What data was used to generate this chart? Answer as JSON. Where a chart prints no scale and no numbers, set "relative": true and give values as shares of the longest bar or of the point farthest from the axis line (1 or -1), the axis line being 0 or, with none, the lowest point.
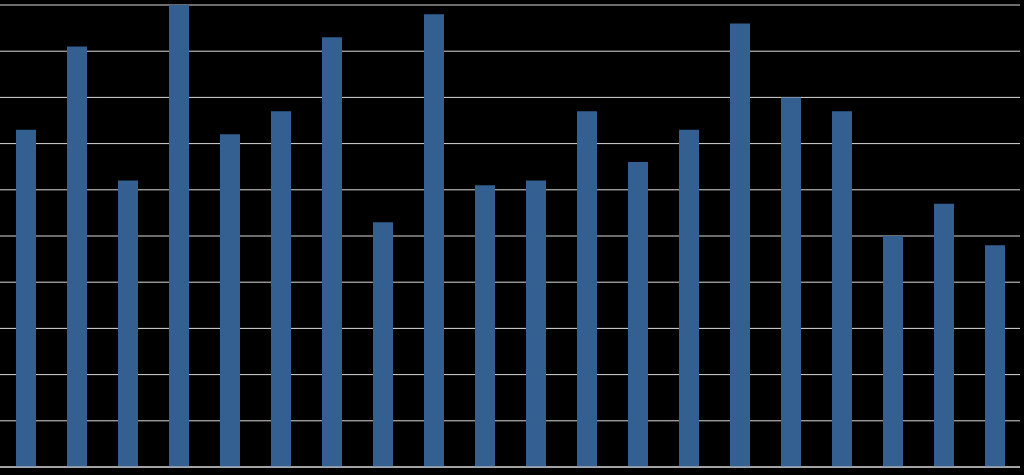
{
  "chart_data": {
    "type": "bar",
    "relative": true,
    "grid": "y",
    "color": "#335f91",
    "categories": [
      null,
      null,
      null,
      null,
      null,
      null,
      null,
      null,
      null,
      null,
      null,
      null,
      null,
      null,
      null,
      null,
      null,
      null,
      null,
      null
    ],
    "values": [
      0.73,
      0.91,
      0.62,
      1,
      0.72,
      0.77,
      0.93,
      0.53,
      0.98,
      0.61,
      0.62,
      0.77,
      0.66,
      0.73,
      0.96,
      0.8,
      0.77,
      0.5,
      0.57,
      0.48
    ]
  }
}
